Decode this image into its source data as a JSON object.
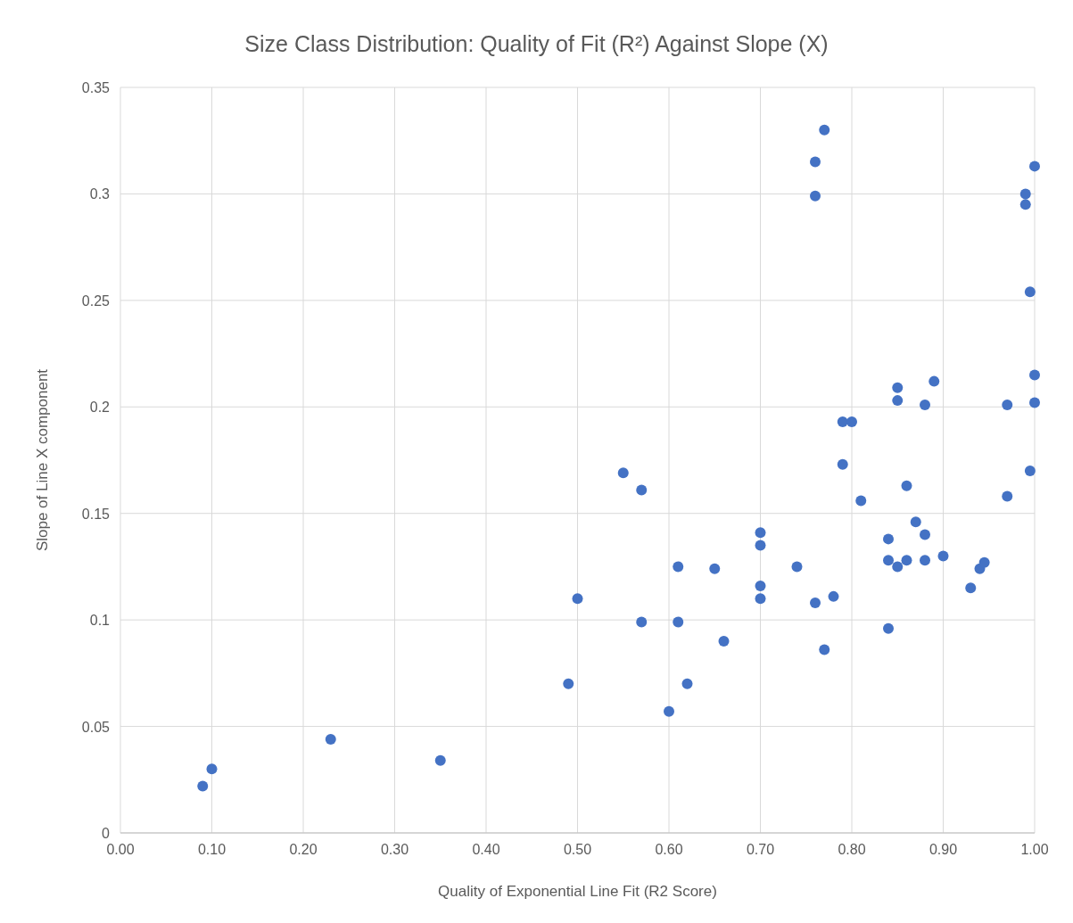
{
  "chart_data": {
    "type": "scatter",
    "title": "Size Class Distribution: Quality of Fit (R²) Against Slope (X)",
    "xlabel": "Quality of Exponential Line Fit (R2 Score)",
    "ylabel": "Slope of Line X component",
    "x": [
      0.09,
      0.1,
      0.23,
      0.35,
      0.49,
      0.5,
      0.55,
      0.57,
      0.57,
      0.6,
      0.61,
      0.61,
      0.62,
      0.65,
      0.66,
      0.7,
      0.7,
      0.7,
      0.7,
      0.74,
      0.76,
      0.76,
      0.76,
      0.77,
      0.77,
      0.78,
      0.79,
      0.8,
      0.79,
      0.81,
      0.84,
      0.84,
      0.84,
      0.85,
      0.85,
      0.85,
      0.86,
      0.86,
      0.87,
      0.88,
      0.88,
      0.88,
      0.89,
      0.9,
      0.93,
      0.94,
      0.945,
      0.97,
      0.97,
      0.99,
      0.99,
      0.995,
      1.0,
      1.0,
      1.0,
      0.995
    ],
    "series": [
      {
        "color": "#4472c4",
        "values": [
          0.022,
          0.03,
          0.044,
          0.034,
          0.07,
          0.11,
          0.169,
          0.161,
          0.099,
          0.057,
          0.125,
          0.099,
          0.07,
          0.124,
          0.09,
          0.141,
          0.135,
          0.116,
          0.11,
          0.125,
          0.315,
          0.299,
          0.108,
          0.33,
          0.086,
          0.111,
          0.193,
          0.193,
          0.173,
          0.156,
          0.138,
          0.128,
          0.096,
          0.209,
          0.203,
          0.125,
          0.163,
          0.128,
          0.146,
          0.201,
          0.14,
          0.128,
          0.212,
          0.13,
          0.115,
          0.124,
          0.127,
          0.201,
          0.158,
          0.3,
          0.295,
          0.254,
          0.313,
          0.215,
          0.202,
          0.17
        ]
      }
    ],
    "xlim": [
      0,
      1
    ],
    "xticks": [
      {
        "value": 0,
        "label": "0.00"
      },
      {
        "value": 0.1,
        "label": "0.10"
      },
      {
        "value": 0.2,
        "label": "0.20"
      },
      {
        "value": 0.3,
        "label": "0.30"
      },
      {
        "value": 0.4,
        "label": "0.40"
      },
      {
        "value": 0.5,
        "label": "0.50"
      },
      {
        "value": 0.6,
        "label": "0.60"
      },
      {
        "value": 0.7,
        "label": "0.70"
      },
      {
        "value": 0.8,
        "label": "0.80"
      },
      {
        "value": 0.9,
        "label": "0.90"
      },
      {
        "value": 1,
        "label": "1.00"
      }
    ],
    "ylim": [
      0,
      0.35
    ],
    "yticks": [
      0,
      0.05,
      0.1,
      0.15,
      0.2,
      0.25,
      0.3,
      0.35
    ],
    "grid": true,
    "marker": "circle"
  }
}
